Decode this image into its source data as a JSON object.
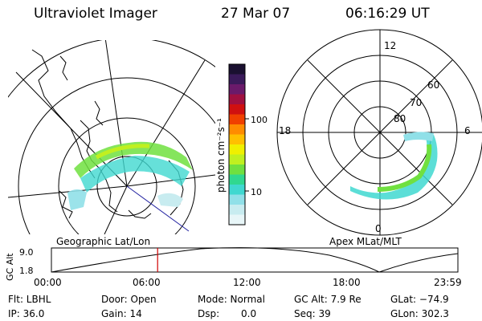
{
  "header": {
    "instrument": "Ultraviolet Imager",
    "date": "27 Mar 07",
    "time": "06:16:29 UT"
  },
  "left_panel": {
    "caption": "Geographic Lat/Lon"
  },
  "right_panel": {
    "caption": "Apex MLat/MLT",
    "mlt_labels": [
      "12",
      "18",
      "6",
      "0"
    ],
    "lat_labels": [
      "60",
      "70",
      "80"
    ]
  },
  "colorbar": {
    "unit_label": "photon cm⁻²s⁻¹",
    "ticks": [
      "100",
      "10"
    ],
    "colors": [
      "#1a1030",
      "#3a1a5a",
      "#6a1a6a",
      "#a01040",
      "#d01010",
      "#f04000",
      "#ff8c00",
      "#ffc000",
      "#f0f000",
      "#c0f020",
      "#70e040",
      "#30d890",
      "#40d8d0",
      "#90e0e8",
      "#c8ecf0",
      "#e8f6f8"
    ]
  },
  "altitude_plot": {
    "ylabel": "GC Alt",
    "ymax": "9.0",
    "ymin": "1.8",
    "x_ticks": [
      "00:00",
      "06:00",
      "12:00",
      "18:00",
      "23:59"
    ],
    "marker_time_hours": 6.27,
    "marker_color": "#d00000"
  },
  "info": {
    "flt": "Flt: LBHL",
    "ip": "IP: 36.0",
    "door": "Door: Open",
    "gain": "Gain: 14",
    "mode": "Mode: Normal",
    "dsp_label": "Dsp:",
    "dsp_value": "0.0",
    "gc_alt": "GC Alt: 7.9 Re",
    "seq": "Seq: 39",
    "glat": "GLat: −74.9",
    "glon": "GLon: 302.3"
  }
}
